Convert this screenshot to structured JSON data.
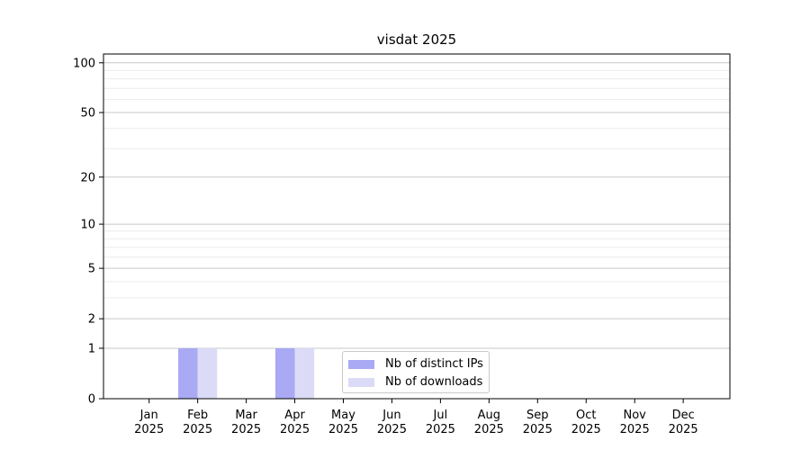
{
  "chart_data": {
    "type": "bar",
    "title": "visdat 2025",
    "months": [
      "Jan",
      "Feb",
      "Mar",
      "Apr",
      "May",
      "Jun",
      "Jul",
      "Aug",
      "Sep",
      "Oct",
      "Nov",
      "Dec"
    ],
    "year_label": "2025",
    "series": [
      {
        "name": "Nb of distinct IPs",
        "color": "#a9a9f4",
        "values": [
          0,
          1,
          0,
          1,
          0,
          0,
          0,
          0,
          0,
          0,
          0,
          0
        ]
      },
      {
        "name": "Nb of downloads",
        "color": "#dbdbf7",
        "values": [
          0,
          1,
          0,
          1,
          0,
          0,
          0,
          0,
          0,
          0,
          0,
          0
        ]
      }
    ],
    "y_ticks": [
      0,
      1,
      2,
      5,
      10,
      20,
      50,
      100
    ],
    "y_minor_gridlines": [
      3,
      4,
      6,
      7,
      8,
      9,
      30,
      40,
      60,
      70,
      80,
      90
    ],
    "ylim": [
      0,
      113
    ],
    "y_scale": "log1p",
    "grid": true,
    "legend_position": "inside-bottom-center",
    "colors": {
      "axis": "#000000",
      "text": "#000000",
      "grid_major": "#c8c8c8",
      "grid_minor": "#ececec",
      "legend_border": "#c9c9c9",
      "background": "#ffffff"
    }
  }
}
